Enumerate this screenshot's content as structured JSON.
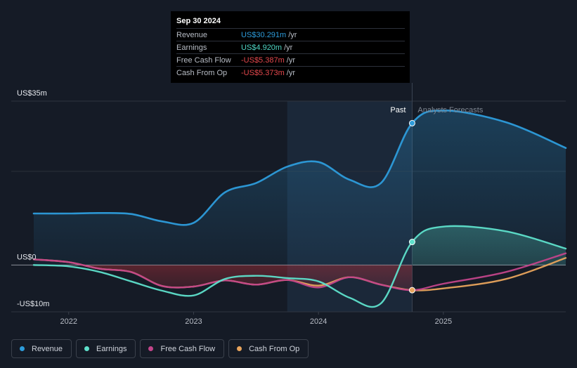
{
  "tooltip": {
    "date": "Sep 30 2024",
    "rows": [
      {
        "label": "Revenue",
        "value": "US$30.291m",
        "unit": "/yr",
        "color": "#2d9cdb"
      },
      {
        "label": "Earnings",
        "value": "US$4.920m",
        "unit": "/yr",
        "color": "#4fd6c4"
      },
      {
        "label": "Free Cash Flow",
        "value": "-US$5.387m",
        "unit": "/yr",
        "color": "#e5484d"
      },
      {
        "label": "Cash From Op",
        "value": "-US$5.373m",
        "unit": "/yr",
        "color": "#e5484d"
      }
    ]
  },
  "region_labels": {
    "past": "Past",
    "forecast": "Analysts Forecasts"
  },
  "legend": [
    {
      "label": "Revenue",
      "color": "#2d9cdb"
    },
    {
      "label": "Earnings",
      "color": "#5ee0cb"
    },
    {
      "label": "Free Cash Flow",
      "color": "#c2458a"
    },
    {
      "label": "Cash From Op",
      "color": "#e8a45c"
    }
  ],
  "chart_data": {
    "type": "line",
    "y_tick_labels": [
      "US$35m",
      "US$0",
      "-US$10m"
    ],
    "ylim": [
      -10,
      35
    ],
    "x_tick_labels": [
      "2022",
      "2023",
      "2024",
      "2025"
    ],
    "xlim": [
      2021.72,
      2025.98
    ],
    "highlight_start": 2023.75,
    "past_end": 2024.75,
    "series": [
      {
        "name": "Revenue",
        "color": "#2d9cdb",
        "x": [
          2021.72,
          2022.0,
          2022.25,
          2022.5,
          2022.75,
          2023.0,
          2023.25,
          2023.5,
          2023.75,
          2024.0,
          2024.25,
          2024.5,
          2024.75,
          2025.0,
          2025.5,
          2025.98
        ],
        "y": [
          11.0,
          11.0,
          11.1,
          10.9,
          9.3,
          9.0,
          15.5,
          17.5,
          21.0,
          22.0,
          18.2,
          17.5,
          30.291,
          33.0,
          30.5,
          25.0
        ]
      },
      {
        "name": "Earnings",
        "color": "#5ee0cb",
        "x": [
          2021.72,
          2022.0,
          2022.25,
          2022.5,
          2022.75,
          2023.0,
          2023.25,
          2023.5,
          2023.75,
          2024.0,
          2024.25,
          2024.5,
          2024.75,
          2025.0,
          2025.5,
          2025.98
        ],
        "y": [
          0.0,
          -0.3,
          -1.5,
          -3.5,
          -5.5,
          -6.5,
          -3.0,
          -2.3,
          -2.8,
          -3.5,
          -7.0,
          -8.2,
          4.92,
          8.2,
          7.2,
          3.5
        ]
      },
      {
        "name": "Free Cash Flow",
        "color": "#c2458a",
        "x": [
          2021.72,
          2022.0,
          2022.25,
          2022.5,
          2022.75,
          2023.0,
          2023.25,
          2023.5,
          2023.75,
          2024.0,
          2024.25,
          2024.5,
          2024.75,
          2025.0,
          2025.5,
          2025.98
        ],
        "y": [
          1.2,
          0.6,
          -0.8,
          -1.5,
          -4.5,
          -4.6,
          -3.3,
          -4.2,
          -3.2,
          -4.8,
          -2.6,
          -4.2,
          -5.387,
          -4.0,
          -1.5,
          2.5
        ]
      },
      {
        "name": "Cash From Op",
        "color": "#e8a45c",
        "x": [
          2021.72,
          2022.0,
          2022.25,
          2022.5,
          2022.75,
          2023.0,
          2023.25,
          2023.5,
          2023.75,
          2024.0,
          2024.25,
          2024.5,
          2024.75,
          2025.0,
          2025.5,
          2025.98
        ],
        "y": [
          1.2,
          0.6,
          -0.8,
          -1.5,
          -4.5,
          -4.6,
          -3.3,
          -4.2,
          -3.2,
          -4.4,
          -2.6,
          -4.2,
          -5.373,
          -5.0,
          -3.0,
          1.5
        ]
      }
    ]
  }
}
